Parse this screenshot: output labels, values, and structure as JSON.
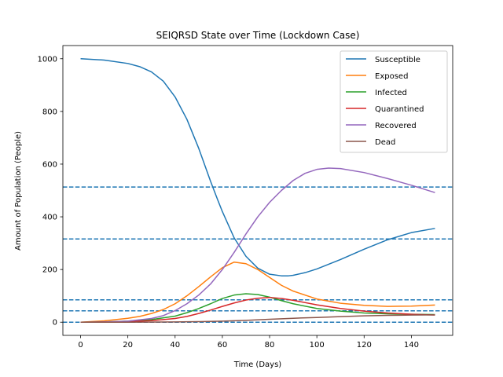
{
  "chart_data": {
    "type": "line",
    "title": "SEIQRSD State over Time (Lockdown Case)",
    "xlabel": "Time (Days)",
    "ylabel": "Amount of Population (People)",
    "xlim": [
      -7.5,
      157.5
    ],
    "ylim": [
      -50,
      1050
    ],
    "xticks": [
      0,
      20,
      40,
      60,
      80,
      100,
      120,
      140
    ],
    "yticks": [
      0,
      200,
      400,
      600,
      800,
      1000
    ],
    "grid": false,
    "legend_position": "top-right",
    "series": [
      {
        "name": "Susceptible",
        "color": "#1f77b4",
        "x": [
          0,
          10,
          20,
          25,
          30,
          35,
          40,
          45,
          50,
          55,
          58,
          60,
          65,
          70,
          75,
          80,
          85,
          88,
          90,
          95,
          100,
          110,
          120,
          130,
          140,
          150
        ],
        "y": [
          1000,
          995,
          982,
          970,
          950,
          915,
          855,
          770,
          660,
          535,
          465,
          420,
          320,
          250,
          205,
          182,
          176,
          176,
          178,
          188,
          202,
          238,
          277,
          313,
          340,
          356
        ]
      },
      {
        "name": "Exposed",
        "color": "#ff7f0e",
        "x": [
          0,
          10,
          20,
          25,
          30,
          35,
          40,
          45,
          50,
          55,
          60,
          65,
          70,
          75,
          80,
          85,
          90,
          100,
          110,
          120,
          130,
          140,
          150
        ],
        "y": [
          0,
          5,
          15,
          22,
          33,
          48,
          70,
          100,
          135,
          172,
          207,
          228,
          222,
          200,
          170,
          140,
          118,
          88,
          72,
          64,
          60,
          61,
          65
        ]
      },
      {
        "name": "Infected",
        "color": "#2ca02c",
        "x": [
          0,
          10,
          20,
          30,
          40,
          45,
          50,
          55,
          60,
          65,
          70,
          75,
          80,
          85,
          90,
          100,
          110,
          120,
          130,
          140,
          150
        ],
        "y": [
          0,
          1,
          4,
          10,
          23,
          36,
          52,
          70,
          90,
          103,
          108,
          105,
          95,
          82,
          70,
          52,
          42,
          35,
          32,
          30,
          29
        ]
      },
      {
        "name": "Quarantined",
        "color": "#d62728",
        "x": [
          0,
          10,
          20,
          30,
          40,
          45,
          50,
          55,
          60,
          65,
          70,
          75,
          80,
          85,
          90,
          100,
          110,
          120,
          130,
          140,
          150
        ],
        "y": [
          0,
          1,
          2,
          6,
          14,
          22,
          33,
          46,
          60,
          73,
          84,
          91,
          94,
          90,
          83,
          66,
          52,
          42,
          35,
          30,
          27
        ]
      },
      {
        "name": "Recovered",
        "color": "#9467bd",
        "x": [
          0,
          10,
          20,
          30,
          35,
          40,
          45,
          50,
          55,
          60,
          65,
          70,
          75,
          80,
          85,
          90,
          95,
          100,
          105,
          110,
          120,
          130,
          140,
          150
        ],
        "y": [
          0,
          1,
          4,
          14,
          25,
          44,
          70,
          103,
          145,
          200,
          265,
          335,
          400,
          455,
          500,
          538,
          565,
          580,
          585,
          583,
          568,
          545,
          520,
          492
        ]
      },
      {
        "name": "Dead",
        "color": "#8c564b",
        "x": [
          0,
          20,
          40,
          50,
          60,
          70,
          80,
          90,
          100,
          110,
          120,
          130,
          140,
          150
        ],
        "y": [
          0,
          0,
          1,
          2,
          4,
          7,
          11,
          15,
          18,
          21,
          24,
          26,
          27,
          28
        ]
      }
    ],
    "reference_lines": {
      "orientation": "horizontal",
      "style": "dashed",
      "color": "#1f77b4",
      "y": [
        0,
        43,
        85,
        316,
        513
      ]
    }
  }
}
